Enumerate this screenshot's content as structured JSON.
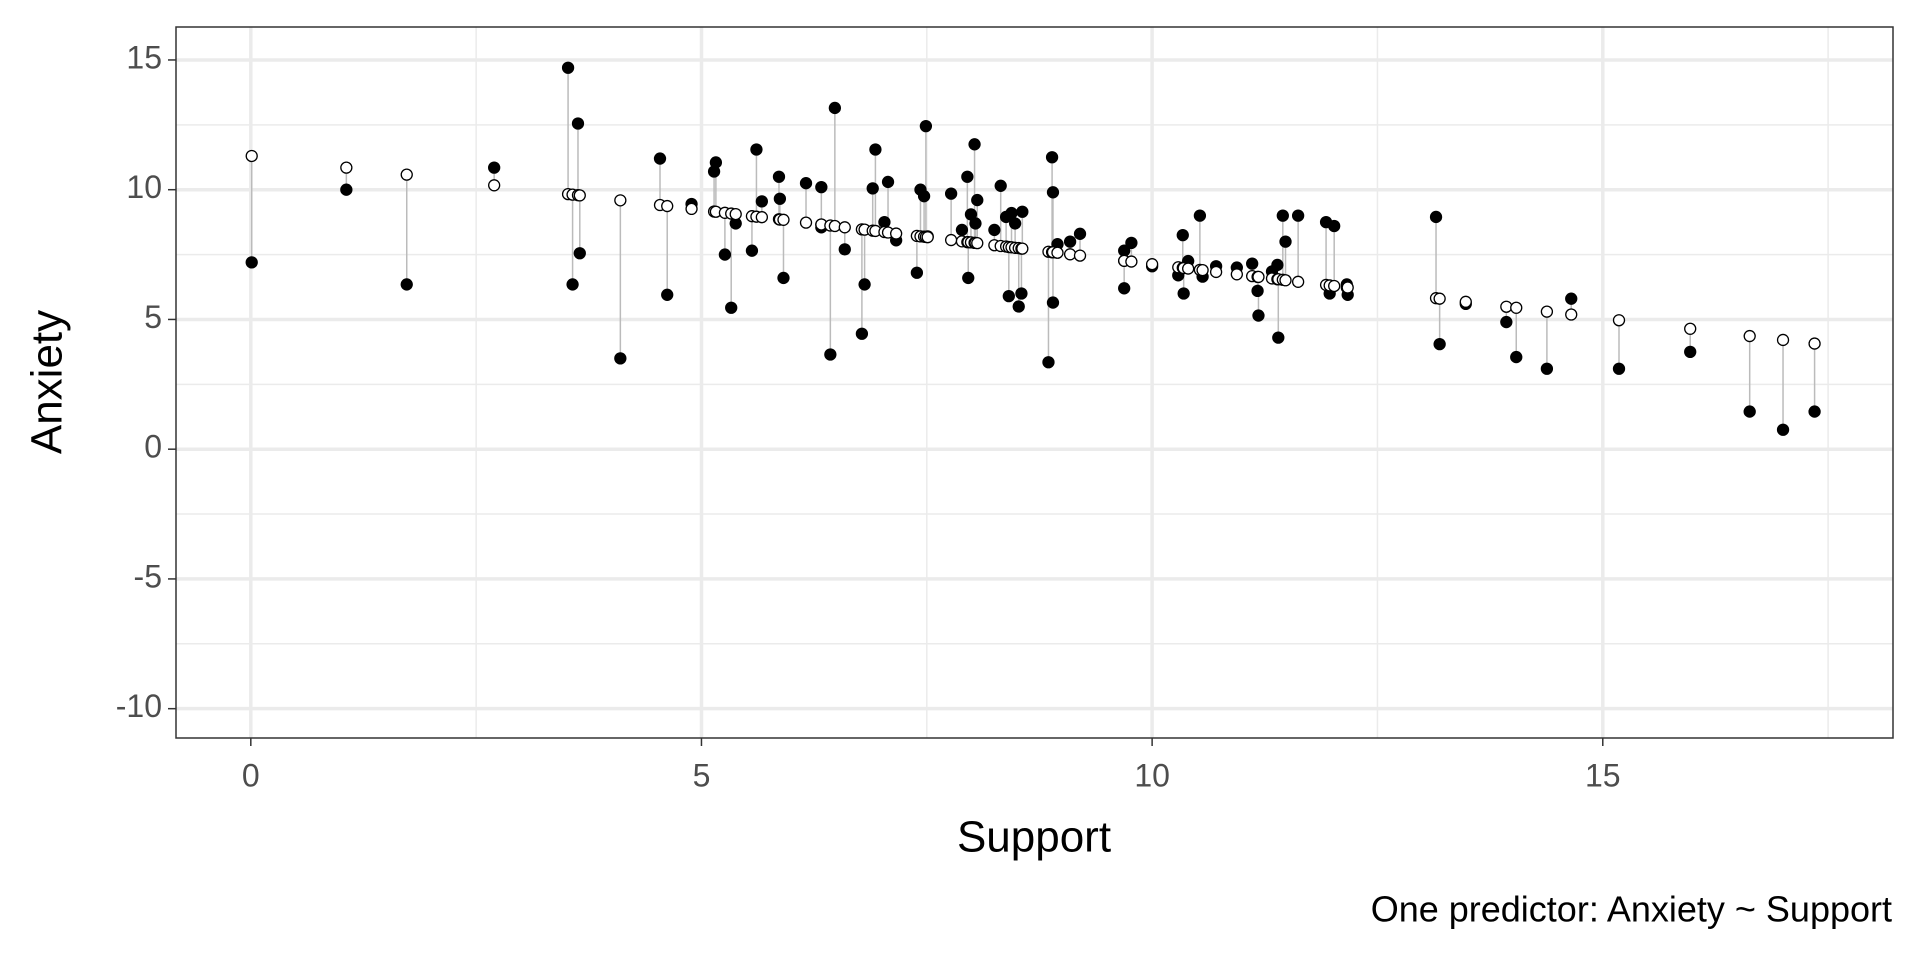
{
  "chart_data": {
    "type": "residual-scatter",
    "x_label": "Support",
    "y_label": "Anxiety",
    "caption": "One predictor: Anxiety ~ Support",
    "xlim": [
      -0.83,
      18.22
    ],
    "ylim": [
      -11.13,
      16.27
    ],
    "xticks": [
      0,
      5,
      10,
      15
    ],
    "yticks": [
      -10,
      -5,
      0,
      5,
      10,
      15
    ],
    "x_minor_grid": [
      2.5,
      7.5,
      12.5,
      17.5
    ],
    "y_minor_grid": [
      -7.5,
      -2.5,
      2.5,
      7.5,
      12.5
    ],
    "grid": true,
    "residual_color": "#bbbbbb",
    "x": [
      0.01,
      1.06,
      1.73,
      2.7,
      3.52,
      3.57,
      3.63,
      3.65,
      4.1,
      4.54,
      4.62,
      4.89,
      5.14,
      5.16,
      5.26,
      5.33,
      5.38,
      5.56,
      5.61,
      5.67,
      5.86,
      5.87,
      5.91,
      6.16,
      6.33,
      6.33,
      6.43,
      6.48,
      6.59,
      6.78,
      6.81,
      6.9,
      6.93,
      7.03,
      7.07,
      7.16,
      7.39,
      7.43,
      7.47,
      7.49,
      7.51,
      7.77,
      7.89,
      7.95,
      7.96,
      7.99,
      8.03,
      8.04,
      8.06,
      8.25,
      8.32,
      8.38,
      8.41,
      8.44,
      8.48,
      8.52,
      8.55,
      8.56,
      8.85,
      8.89,
      8.9,
      8.9,
      8.95,
      9.09,
      9.2,
      9.69,
      9.69,
      9.77,
      10.0,
      10.29,
      10.34,
      10.35,
      10.4,
      10.53,
      10.56,
      10.71,
      10.94,
      11.11,
      11.17,
      11.18,
      11.33,
      11.39,
      11.4,
      11.45,
      11.48,
      11.62,
      11.93,
      11.97,
      12.02,
      12.16,
      12.17,
      13.15,
      13.19,
      13.48,
      13.93,
      14.04,
      14.38,
      14.65,
      15.18,
      15.97,
      16.63,
      17.0,
      17.35
    ],
    "series": [
      {
        "marker": "filled",
        "color": "#000000",
        "values": [
          7.2,
          10.0,
          6.35,
          10.85,
          14.7,
          6.35,
          12.55,
          7.55,
          3.5,
          11.2,
          5.95,
          9.45,
          10.7,
          11.05,
          7.5,
          5.45,
          8.7,
          7.65,
          11.55,
          9.55,
          10.5,
          9.65,
          6.6,
          10.25,
          10.1,
          8.55,
          3.65,
          13.15,
          7.7,
          4.45,
          6.35,
          10.05,
          11.55,
          8.75,
          10.3,
          8.05,
          6.8,
          10.0,
          9.75,
          12.45,
          8.2,
          9.85,
          8.45,
          10.5,
          6.6,
          9.05,
          11.75,
          8.7,
          9.6,
          8.45,
          10.15,
          8.95,
          5.9,
          9.1,
          8.7,
          5.5,
          6.0,
          9.15,
          3.35,
          11.25,
          9.9,
          5.65,
          7.9,
          8.0,
          8.3,
          7.65,
          6.2,
          7.95,
          7.05,
          6.7,
          8.25,
          6.0,
          7.25,
          9.0,
          6.65,
          7.05,
          7.0,
          7.15,
          6.1,
          5.15,
          6.85,
          7.1,
          4.3,
          9.0,
          8.0,
          9.0,
          8.75,
          6.0,
          8.6,
          6.35,
          5.95,
          8.95,
          4.05,
          5.6,
          4.9,
          3.55,
          3.1,
          5.8,
          3.1,
          3.75,
          1.45,
          0.75,
          1.45
        ]
      },
      {
        "marker": "open",
        "color": "#000000",
        "values": [
          11.3,
          10.85,
          10.58,
          10.17,
          9.83,
          9.81,
          9.79,
          9.78,
          9.59,
          9.41,
          9.37,
          9.26,
          9.16,
          9.15,
          9.11,
          9.08,
          9.06,
          8.98,
          8.96,
          8.94,
          8.86,
          8.85,
          8.84,
          8.73,
          8.66,
          8.66,
          8.62,
          8.6,
          8.55,
          8.47,
          8.46,
          8.42,
          8.41,
          8.37,
          8.35,
          8.31,
          8.22,
          8.2,
          8.19,
          8.18,
          8.17,
          8.06,
          8.01,
          7.98,
          7.98,
          7.97,
          7.95,
          7.95,
          7.94,
          7.86,
          7.83,
          7.81,
          7.79,
          7.78,
          7.76,
          7.75,
          7.73,
          7.73,
          7.61,
          7.59,
          7.59,
          7.59,
          7.57,
          7.51,
          7.46,
          7.26,
          7.26,
          7.23,
          7.13,
          7.01,
          6.99,
          6.98,
          6.96,
          6.91,
          6.9,
          6.83,
          6.74,
          6.67,
          6.64,
          6.64,
          6.58,
          6.55,
          6.55,
          6.53,
          6.51,
          6.45,
          6.33,
          6.31,
          6.29,
          6.23,
          6.23,
          5.82,
          5.8,
          5.68,
          5.49,
          5.45,
          5.3,
          5.19,
          4.97,
          4.64,
          4.36,
          4.21,
          4.07
        ]
      }
    ]
  }
}
